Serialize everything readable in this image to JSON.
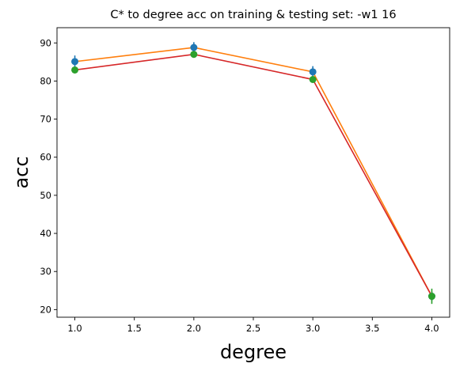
{
  "chart_data": {
    "type": "line",
    "title": "C* to degree acc on training & testing set: -w1 16",
    "xlabel": "degree",
    "ylabel": "acc",
    "xlim": [
      0.85,
      4.15
    ],
    "ylim": [
      18,
      94
    ],
    "xticks": [
      1.0,
      1.5,
      2.0,
      2.5,
      3.0,
      3.5,
      4.0
    ],
    "xtick_labels": [
      "1.0",
      "1.5",
      "2.0",
      "2.5",
      "3.0",
      "3.5",
      "4.0"
    ],
    "yticks": [
      20,
      30,
      40,
      50,
      60,
      70,
      80,
      90
    ],
    "ytick_labels": [
      "20",
      "30",
      "40",
      "50",
      "60",
      "70",
      "80",
      "90"
    ],
    "grid": false,
    "x": [
      1.0,
      2.0,
      3.0,
      4.0
    ],
    "series": [
      {
        "line_color": "#ff7f0e",
        "marker_color": "#1f77b4",
        "values": [
          85.1,
          88.8,
          82.4,
          23.5
        ],
        "errors": [
          1.6,
          1.4,
          1.5,
          1.2
        ]
      },
      {
        "line_color": "#d62728",
        "marker_color": "#2ca02c",
        "values": [
          82.9,
          87.0,
          80.4,
          23.5
        ],
        "errors": [
          0.5,
          0.5,
          0.6,
          2.0
        ]
      }
    ]
  }
}
